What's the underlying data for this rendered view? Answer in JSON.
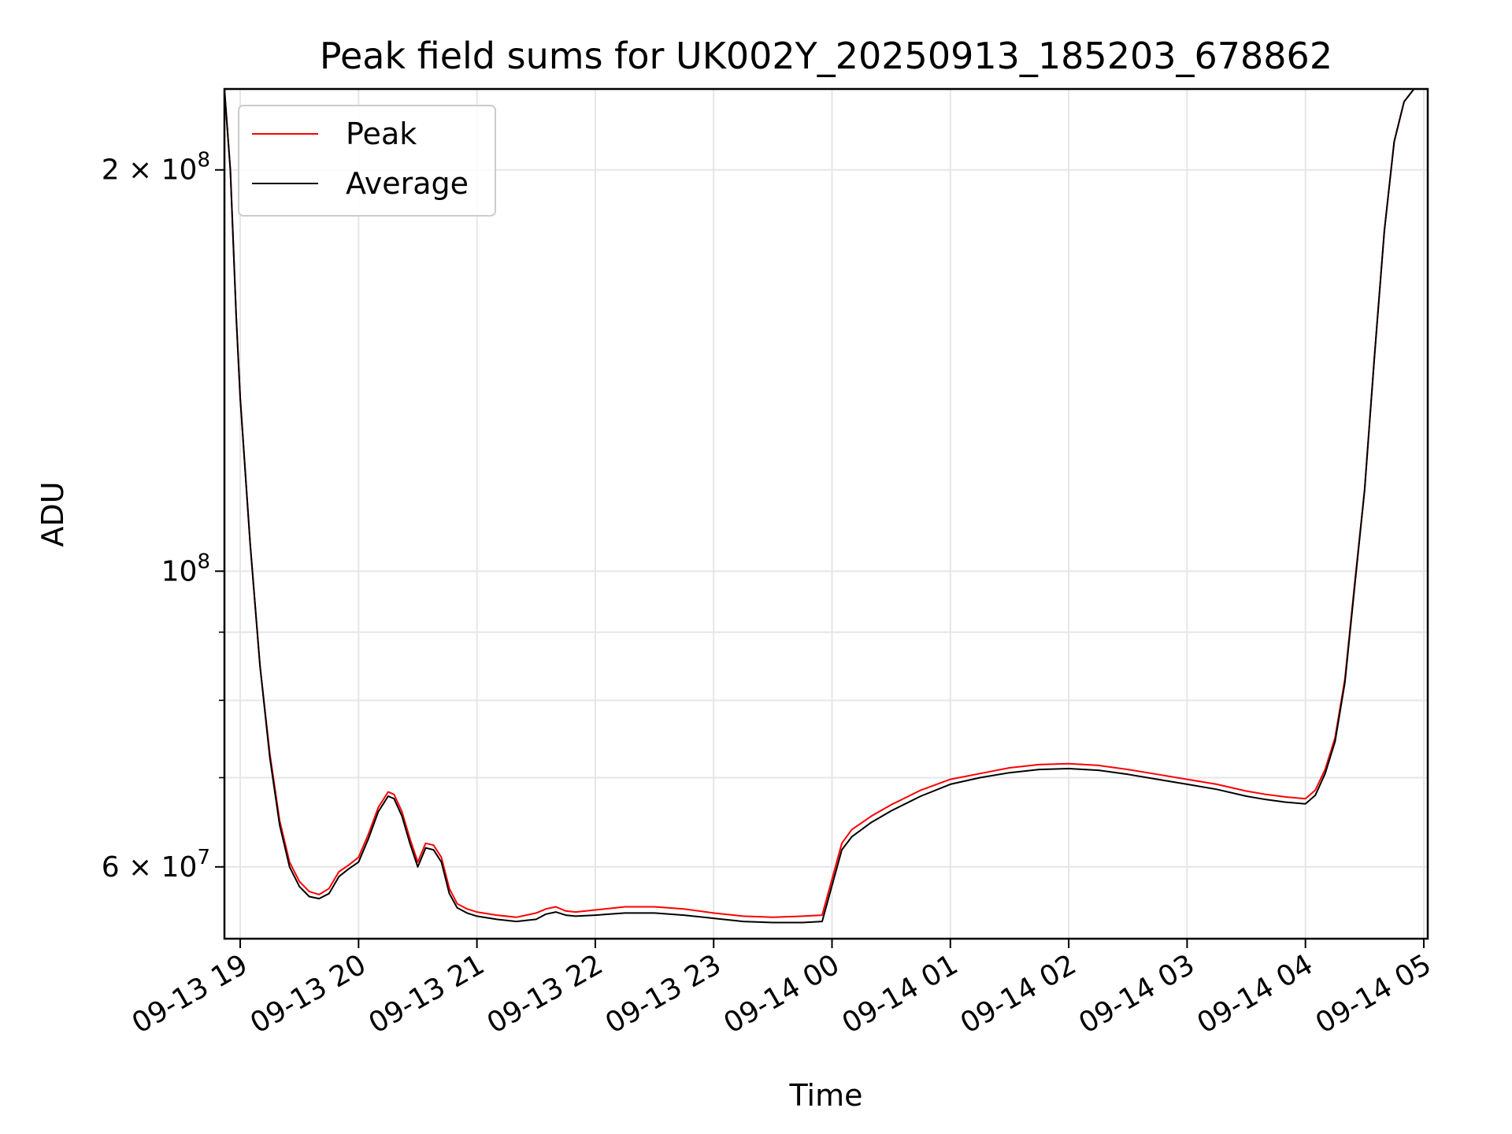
{
  "chart_data": {
    "type": "line",
    "title": "Peak field sums for UK002Y_20250913_185203_678862",
    "xlabel": "Time",
    "ylabel": "ADU",
    "y_scale": "log",
    "ylim": [
      53000000,
      230000000
    ],
    "xlim": [
      "2025-09-13 18:52",
      "2025-09-14 05:02"
    ],
    "grid": true,
    "legend_position": "top-left",
    "x_ticks": [
      {
        "t": "2025-09-13 19:00",
        "label": "09-13 19"
      },
      {
        "t": "2025-09-13 20:00",
        "label": "09-13 20"
      },
      {
        "t": "2025-09-13 21:00",
        "label": "09-13 21"
      },
      {
        "t": "2025-09-13 22:00",
        "label": "09-13 22"
      },
      {
        "t": "2025-09-13 23:00",
        "label": "09-13 23"
      },
      {
        "t": "2025-09-14 00:00",
        "label": "09-14 00"
      },
      {
        "t": "2025-09-14 01:00",
        "label": "09-14 01"
      },
      {
        "t": "2025-09-14 02:00",
        "label": "09-14 02"
      },
      {
        "t": "2025-09-14 03:00",
        "label": "09-14 03"
      },
      {
        "t": "2025-09-14 04:00",
        "label": "09-14 04"
      },
      {
        "t": "2025-09-14 05:00",
        "label": "09-14 05"
      }
    ],
    "y_ticks_major": [
      {
        "value": 60000000,
        "label": "6 × 10",
        "exp": "7"
      },
      {
        "value": 100000000,
        "label": "10",
        "exp": "8"
      },
      {
        "value": 200000000,
        "label": "2 × 10",
        "exp": "8"
      }
    ],
    "y_ticks_minor": [
      70000000,
      80000000,
      90000000
    ],
    "series": [
      {
        "name": "Peak",
        "color": "#ff0000",
        "x": [
          "2025-09-13 18:52",
          "2025-09-13 18:55",
          "2025-09-13 18:58",
          "2025-09-13 19:00",
          "2025-09-13 19:05",
          "2025-09-13 19:10",
          "2025-09-13 19:15",
          "2025-09-13 19:20",
          "2025-09-13 19:25",
          "2025-09-13 19:30",
          "2025-09-13 19:35",
          "2025-09-13 19:40",
          "2025-09-13 19:45",
          "2025-09-13 19:50",
          "2025-09-13 19:55",
          "2025-09-13 20:00",
          "2025-09-13 20:05",
          "2025-09-13 20:10",
          "2025-09-13 20:15",
          "2025-09-13 20:18",
          "2025-09-13 20:22",
          "2025-09-13 20:26",
          "2025-09-13 20:30",
          "2025-09-13 20:34",
          "2025-09-13 20:38",
          "2025-09-13 20:42",
          "2025-09-13 20:46",
          "2025-09-13 20:50",
          "2025-09-13 20:55",
          "2025-09-13 21:00",
          "2025-09-13 21:10",
          "2025-09-13 21:20",
          "2025-09-13 21:30",
          "2025-09-13 21:35",
          "2025-09-13 21:40",
          "2025-09-13 21:45",
          "2025-09-13 21:50",
          "2025-09-13 22:00",
          "2025-09-13 22:15",
          "2025-09-13 22:30",
          "2025-09-13 22:45",
          "2025-09-13 23:00",
          "2025-09-13 23:15",
          "2025-09-13 23:30",
          "2025-09-13 23:45",
          "2025-09-13 23:55",
          "2025-09-14 00:05",
          "2025-09-14 00:10",
          "2025-09-14 00:20",
          "2025-09-14 00:30",
          "2025-09-14 00:45",
          "2025-09-14 01:00",
          "2025-09-14 01:15",
          "2025-09-14 01:30",
          "2025-09-14 01:45",
          "2025-09-14 02:00",
          "2025-09-14 02:15",
          "2025-09-14 02:30",
          "2025-09-14 02:45",
          "2025-09-14 03:00",
          "2025-09-14 03:15",
          "2025-09-14 03:30",
          "2025-09-14 03:40",
          "2025-09-14 03:50",
          "2025-09-14 04:00",
          "2025-09-14 04:05",
          "2025-09-14 04:10",
          "2025-09-14 04:15",
          "2025-09-14 04:20",
          "2025-09-14 04:25",
          "2025-09-14 04:30",
          "2025-09-14 04:35",
          "2025-09-14 04:40",
          "2025-09-14 04:45",
          "2025-09-14 04:50",
          "2025-09-14 04:55",
          "2025-09-14 05:00"
        ],
        "y": [
          230000000,
          200000000,
          155000000,
          135000000,
          105000000,
          85000000,
          73000000,
          65000000,
          60500000,
          58500000,
          57500000,
          57200000,
          57800000,
          59500000,
          60200000,
          61000000,
          63500000,
          66500000,
          68300000,
          68000000,
          66000000,
          63000000,
          60500000,
          62500000,
          62300000,
          61000000,
          57800000,
          56300000,
          55800000,
          55500000,
          55200000,
          55000000,
          55400000,
          55800000,
          56000000,
          55600000,
          55500000,
          55700000,
          56000000,
          56000000,
          55800000,
          55400000,
          55100000,
          55000000,
          55100000,
          55200000,
          62500000,
          64000000,
          65500000,
          66800000,
          68500000,
          69800000,
          70500000,
          71200000,
          71600000,
          71700000,
          71500000,
          71000000,
          70400000,
          69800000,
          69200000,
          68400000,
          68000000,
          67700000,
          67500000,
          68500000,
          71000000,
          75000000,
          83000000,
          98000000,
          115000000,
          145000000,
          180000000,
          210000000,
          225000000,
          230000000,
          230000000
        ]
      },
      {
        "name": "Average",
        "color": "#000000",
        "x": [
          "2025-09-13 18:52",
          "2025-09-13 18:55",
          "2025-09-13 18:58",
          "2025-09-13 19:00",
          "2025-09-13 19:05",
          "2025-09-13 19:10",
          "2025-09-13 19:15",
          "2025-09-13 19:20",
          "2025-09-13 19:25",
          "2025-09-13 19:30",
          "2025-09-13 19:35",
          "2025-09-13 19:40",
          "2025-09-13 19:45",
          "2025-09-13 19:50",
          "2025-09-13 19:55",
          "2025-09-13 20:00",
          "2025-09-13 20:05",
          "2025-09-13 20:10",
          "2025-09-13 20:15",
          "2025-09-13 20:18",
          "2025-09-13 20:22",
          "2025-09-13 20:26",
          "2025-09-13 20:30",
          "2025-09-13 20:34",
          "2025-09-13 20:38",
          "2025-09-13 20:42",
          "2025-09-13 20:46",
          "2025-09-13 20:50",
          "2025-09-13 20:55",
          "2025-09-13 21:00",
          "2025-09-13 21:10",
          "2025-09-13 21:20",
          "2025-09-13 21:30",
          "2025-09-13 21:35",
          "2025-09-13 21:40",
          "2025-09-13 21:45",
          "2025-09-13 21:50",
          "2025-09-13 22:00",
          "2025-09-13 22:15",
          "2025-09-13 22:30",
          "2025-09-13 22:45",
          "2025-09-13 23:00",
          "2025-09-13 23:15",
          "2025-09-13 23:30",
          "2025-09-13 23:45",
          "2025-09-13 23:55",
          "2025-09-14 00:05",
          "2025-09-14 00:10",
          "2025-09-14 00:20",
          "2025-09-14 00:30",
          "2025-09-14 00:45",
          "2025-09-14 01:00",
          "2025-09-14 01:15",
          "2025-09-14 01:30",
          "2025-09-14 01:45",
          "2025-09-14 02:00",
          "2025-09-14 02:15",
          "2025-09-14 02:30",
          "2025-09-14 02:45",
          "2025-09-14 03:00",
          "2025-09-14 03:15",
          "2025-09-14 03:30",
          "2025-09-14 03:40",
          "2025-09-14 03:50",
          "2025-09-14 04:00",
          "2025-09-14 04:05",
          "2025-09-14 04:10",
          "2025-09-14 04:15",
          "2025-09-14 04:20",
          "2025-09-14 04:25",
          "2025-09-14 04:30",
          "2025-09-14 04:35",
          "2025-09-14 04:40",
          "2025-09-14 04:45",
          "2025-09-14 04:50",
          "2025-09-14 04:55",
          "2025-09-14 05:00"
        ],
        "y": [
          230000000,
          200000000,
          155000000,
          135000000,
          105000000,
          85000000,
          72500000,
          64500000,
          60000000,
          58000000,
          57000000,
          56800000,
          57300000,
          59000000,
          59800000,
          60500000,
          63000000,
          66000000,
          67800000,
          67500000,
          65500000,
          62500000,
          60000000,
          62000000,
          61800000,
          60500000,
          57300000,
          55900000,
          55400000,
          55100000,
          54800000,
          54600000,
          54800000,
          55300000,
          55500000,
          55200000,
          55100000,
          55200000,
          55400000,
          55400000,
          55200000,
          54900000,
          54600000,
          54500000,
          54500000,
          54600000,
          61800000,
          63200000,
          64800000,
          66100000,
          67800000,
          69200000,
          70000000,
          70600000,
          71000000,
          71100000,
          70900000,
          70400000,
          69800000,
          69200000,
          68600000,
          67800000,
          67400000,
          67100000,
          66900000,
          67900000,
          70500000,
          74500000,
          82500000,
          97500000,
          115000000,
          145000000,
          180000000,
          210000000,
          225000000,
          230000000,
          230000000
        ]
      }
    ]
  }
}
